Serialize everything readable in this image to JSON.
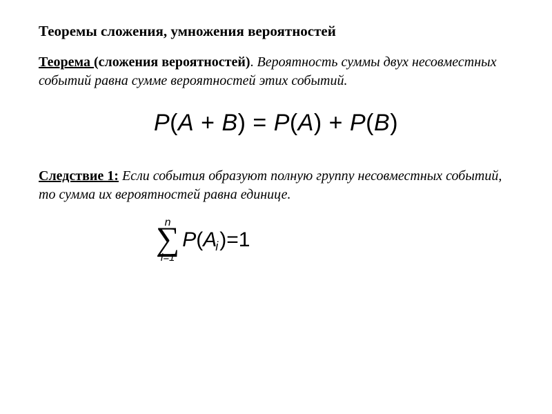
{
  "title": "Теоремы сложения, умножения вероятностей",
  "theorem": {
    "label": "Теорема ",
    "paren": "(сложения вероятностей)",
    "period": ".",
    "body": " Вероятность суммы двух несовместных событий равна сумме вероятностей этих событий."
  },
  "formula1": {
    "P": "P",
    "lpar": "(",
    "A": "A",
    "plus": " + ",
    "B": "B",
    "rpar": ")",
    "eq": " = ",
    "plus2": " + "
  },
  "corollary": {
    "label": "Следствие 1:",
    "body": " Если события  образуют полную группу несовместных событий, то сумма их вероятностей равна единице."
  },
  "formula2": {
    "upper": "n",
    "sigma": "∑",
    "lower": "i=1",
    "P": "P",
    "lpar": "(",
    "A": "A",
    "sub": "i",
    "rpar": ")",
    "eq": " = ",
    "one": "1"
  },
  "colors": {
    "background": "#ffffff",
    "text": "#000000"
  }
}
